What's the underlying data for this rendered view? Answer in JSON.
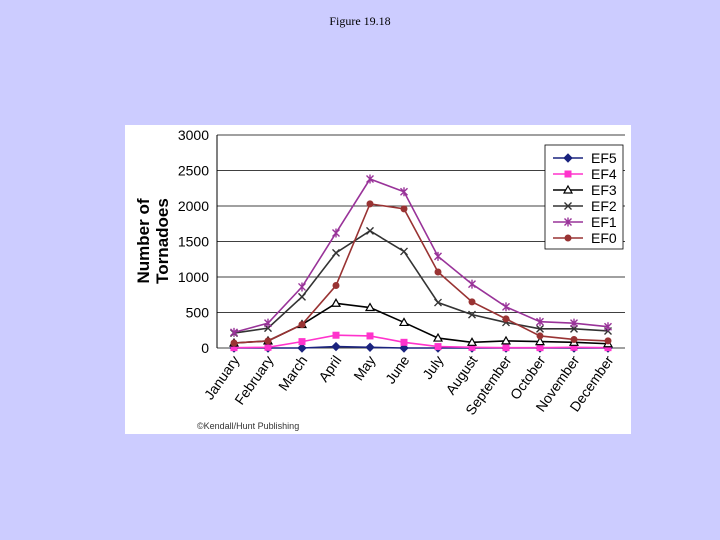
{
  "page": {
    "title": "Figure 19.18"
  },
  "credit": "©Kendall/Hunt Publishing",
  "chart_data": {
    "type": "line",
    "title": "",
    "xlabel": "",
    "ylabel": "Number of Tornadoes",
    "ylim": [
      0,
      3000
    ],
    "yticks": [
      0,
      500,
      1000,
      1500,
      2000,
      2500,
      3000
    ],
    "grid": true,
    "legend_position": "right",
    "categories": [
      "January",
      "February",
      "March",
      "April",
      "May",
      "June",
      "July",
      "August",
      "September",
      "October",
      "November",
      "December"
    ],
    "series": [
      {
        "name": "EF5",
        "color": "#1a237e",
        "marker": "diamond",
        "values": [
          0,
          0,
          0,
          20,
          10,
          0,
          0,
          0,
          0,
          0,
          0,
          0
        ]
      },
      {
        "name": "EF4",
        "color": "#ff33cc",
        "marker": "square",
        "values": [
          5,
          10,
          90,
          180,
          170,
          80,
          20,
          10,
          5,
          5,
          10,
          5
        ]
      },
      {
        "name": "EF3",
        "color": "#000000",
        "marker": "triangle",
        "values": [
          70,
          100,
          330,
          630,
          570,
          360,
          140,
          80,
          100,
          90,
          80,
          60
        ]
      },
      {
        "name": "EF2",
        "color": "#333333",
        "marker": "x",
        "values": [
          210,
          280,
          720,
          1340,
          1650,
          1360,
          640,
          470,
          360,
          270,
          270,
          240
        ]
      },
      {
        "name": "EF1",
        "color": "#993399",
        "marker": "star",
        "values": [
          220,
          350,
          860,
          1620,
          2380,
          2200,
          1290,
          900,
          580,
          370,
          350,
          300
        ]
      },
      {
        "name": "EF0",
        "color": "#993333",
        "marker": "circle",
        "values": [
          70,
          100,
          330,
          880,
          2030,
          1960,
          1070,
          650,
          410,
          170,
          120,
          100
        ]
      }
    ]
  }
}
